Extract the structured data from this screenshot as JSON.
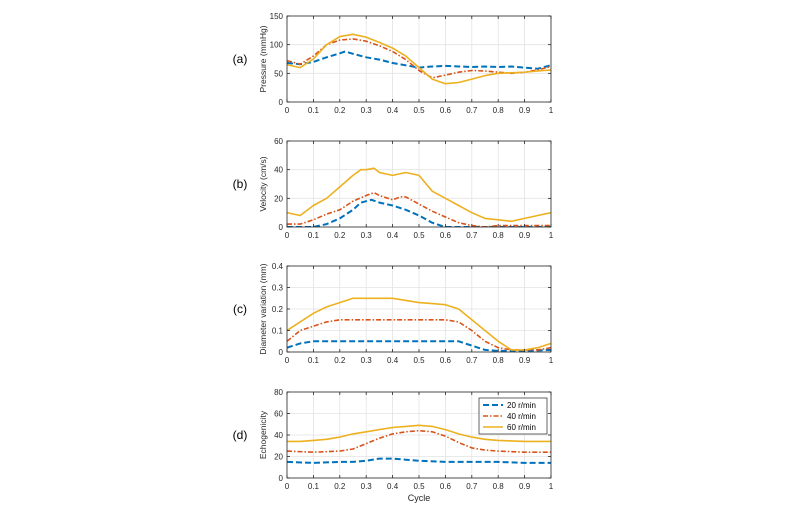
{
  "colors": {
    "series1": "#0072BD",
    "series2": "#D95319",
    "series3": "#EDB120",
    "grid": "#e3e3e3",
    "axis": "#262626"
  },
  "legend": [
    "20 r/min",
    "40 r/min",
    "60 r/min"
  ],
  "xlabel": "Cycle",
  "chart_data": [
    {
      "type": "line",
      "panel_label": "(a)",
      "title": "",
      "xlabel": "",
      "ylabel": "Pressure (mmHg)",
      "xlim": [
        0,
        1
      ],
      "ylim": [
        0,
        150
      ],
      "grid": true,
      "xticks": [
        0,
        0.1,
        0.2,
        0.3,
        0.4,
        0.5,
        0.6,
        0.7,
        0.8,
        0.9,
        1
      ],
      "yticks": [
        0,
        50,
        100,
        150
      ],
      "series": [
        {
          "name": "20 r/min",
          "style": "dashed",
          "x": [
            0,
            0.05,
            0.1,
            0.15,
            0.2,
            0.22,
            0.25,
            0.3,
            0.35,
            0.4,
            0.45,
            0.5,
            0.55,
            0.6,
            0.65,
            0.7,
            0.75,
            0.8,
            0.85,
            0.9,
            0.95,
            1
          ],
          "y": [
            68,
            66,
            70,
            78,
            85,
            88,
            84,
            78,
            74,
            68,
            64,
            60,
            62,
            63,
            62,
            61,
            62,
            61,
            62,
            60,
            58,
            64
          ]
        },
        {
          "name": "40 r/min",
          "style": "dashdot",
          "x": [
            0,
            0.05,
            0.1,
            0.15,
            0.2,
            0.25,
            0.3,
            0.35,
            0.4,
            0.45,
            0.5,
            0.55,
            0.6,
            0.65,
            0.7,
            0.75,
            0.8,
            0.85,
            0.9,
            0.95,
            1
          ],
          "y": [
            72,
            66,
            80,
            100,
            108,
            110,
            106,
            98,
            88,
            74,
            55,
            42,
            47,
            52,
            55,
            54,
            52,
            50,
            52,
            56,
            62
          ]
        },
        {
          "name": "60 r/min",
          "style": "solid",
          "x": [
            0,
            0.05,
            0.1,
            0.15,
            0.2,
            0.25,
            0.3,
            0.35,
            0.4,
            0.45,
            0.5,
            0.55,
            0.6,
            0.65,
            0.7,
            0.75,
            0.8,
            0.85,
            0.9,
            0.95,
            1
          ],
          "y": [
            65,
            60,
            75,
            100,
            114,
            118,
            113,
            104,
            94,
            80,
            60,
            40,
            32,
            34,
            40,
            46,
            50,
            51,
            52,
            54,
            56
          ]
        }
      ]
    },
    {
      "type": "line",
      "panel_label": "(b)",
      "title": "",
      "xlabel": "",
      "ylabel": "Velocity (cm/s)",
      "xlim": [
        0,
        1
      ],
      "ylim": [
        0,
        60
      ],
      "grid": true,
      "xticks": [
        0,
        0.1,
        0.2,
        0.3,
        0.4,
        0.5,
        0.6,
        0.7,
        0.8,
        0.9,
        1
      ],
      "yticks": [
        0,
        20,
        40,
        60
      ],
      "series": [
        {
          "name": "20 r/min",
          "style": "dashed",
          "x": [
            0,
            0.1,
            0.15,
            0.2,
            0.25,
            0.28,
            0.3,
            0.32,
            0.35,
            0.4,
            0.45,
            0.5,
            0.55,
            0.6,
            0.65,
            0.7,
            0.8,
            0.9,
            1
          ],
          "y": [
            0,
            0,
            2,
            6,
            12,
            17,
            18,
            19,
            17,
            15,
            12,
            8,
            3,
            0,
            0,
            0,
            0,
            0,
            0
          ]
        },
        {
          "name": "40 r/min",
          "style": "dashdot",
          "x": [
            0,
            0.05,
            0.1,
            0.15,
            0.2,
            0.25,
            0.3,
            0.33,
            0.35,
            0.4,
            0.43,
            0.45,
            0.5,
            0.55,
            0.6,
            0.65,
            0.7,
            0.75,
            0.8,
            0.85,
            0.9,
            0.95,
            1
          ],
          "y": [
            2,
            2,
            5,
            9,
            12,
            18,
            22,
            24,
            22,
            19,
            21,
            21,
            16,
            11,
            7,
            3,
            1,
            0,
            1,
            1,
            1,
            1,
            1
          ]
        },
        {
          "name": "60 r/min",
          "style": "solid",
          "x": [
            0,
            0.05,
            0.1,
            0.15,
            0.2,
            0.25,
            0.28,
            0.3,
            0.33,
            0.35,
            0.4,
            0.45,
            0.5,
            0.55,
            0.6,
            0.65,
            0.7,
            0.75,
            0.8,
            0.85,
            0.9,
            0.95,
            1
          ],
          "y": [
            10,
            8,
            15,
            20,
            28,
            36,
            40,
            40,
            41,
            38,
            36,
            38,
            36,
            25,
            20,
            15,
            10,
            6,
            5,
            4,
            6,
            8,
            10
          ]
        }
      ]
    },
    {
      "type": "line",
      "panel_label": "(c)",
      "title": "",
      "xlabel": "",
      "ylabel": "Diameter variation (mm)",
      "xlim": [
        0,
        1
      ],
      "ylim": [
        0,
        0.4
      ],
      "grid": true,
      "xticks": [
        0,
        0.1,
        0.2,
        0.3,
        0.4,
        0.5,
        0.6,
        0.7,
        0.8,
        0.9,
        1
      ],
      "yticks": [
        0,
        0.1,
        0.2,
        0.3,
        0.4
      ],
      "series": [
        {
          "name": "20 r/min",
          "style": "dashed",
          "x": [
            0,
            0.05,
            0.1,
            0.2,
            0.3,
            0.4,
            0.5,
            0.6,
            0.65,
            0.7,
            0.75,
            0.8,
            0.9,
            1
          ],
          "y": [
            0.02,
            0.04,
            0.05,
            0.05,
            0.05,
            0.05,
            0.05,
            0.05,
            0.05,
            0.03,
            0.01,
            0.005,
            0.005,
            0.01
          ]
        },
        {
          "name": "40 r/min",
          "style": "dashdot",
          "x": [
            0,
            0.05,
            0.1,
            0.15,
            0.2,
            0.3,
            0.4,
            0.5,
            0.55,
            0.6,
            0.65,
            0.7,
            0.75,
            0.8,
            0.85,
            0.9,
            0.95,
            1
          ],
          "y": [
            0.05,
            0.1,
            0.12,
            0.14,
            0.15,
            0.15,
            0.15,
            0.15,
            0.15,
            0.15,
            0.14,
            0.1,
            0.05,
            0.02,
            0.01,
            0.01,
            0.01,
            0.02
          ]
        },
        {
          "name": "60 r/min",
          "style": "solid",
          "x": [
            0,
            0.05,
            0.1,
            0.15,
            0.2,
            0.25,
            0.3,
            0.4,
            0.45,
            0.5,
            0.55,
            0.6,
            0.65,
            0.7,
            0.75,
            0.8,
            0.85,
            0.9,
            0.95,
            1
          ],
          "y": [
            0.1,
            0.14,
            0.18,
            0.21,
            0.23,
            0.25,
            0.25,
            0.25,
            0.24,
            0.23,
            0.225,
            0.22,
            0.2,
            0.15,
            0.1,
            0.05,
            0.01,
            0.01,
            0.02,
            0.04
          ]
        }
      ]
    },
    {
      "type": "line",
      "panel_label": "(d)",
      "title": "",
      "xlabel": "Cycle",
      "ylabel": "Echogenicity",
      "xlim": [
        0,
        1
      ],
      "ylim": [
        0,
        80
      ],
      "grid": true,
      "legend_position": "top-right",
      "xticks": [
        0,
        0.1,
        0.2,
        0.3,
        0.4,
        0.5,
        0.6,
        0.7,
        0.8,
        0.9,
        1
      ],
      "yticks": [
        0,
        20,
        40,
        60,
        80
      ],
      "series": [
        {
          "name": "20 r/min",
          "style": "dashed",
          "x": [
            0,
            0.1,
            0.2,
            0.25,
            0.3,
            0.35,
            0.4,
            0.45,
            0.5,
            0.6,
            0.7,
            0.8,
            0.9,
            1
          ],
          "y": [
            15,
            14,
            15,
            15,
            16,
            18,
            18,
            17,
            16,
            15,
            15,
            15,
            14,
            14
          ]
        },
        {
          "name": "40 r/min",
          "style": "dashdot",
          "x": [
            0,
            0.1,
            0.2,
            0.25,
            0.3,
            0.35,
            0.4,
            0.45,
            0.5,
            0.55,
            0.6,
            0.65,
            0.7,
            0.75,
            0.8,
            0.9,
            1
          ],
          "y": [
            25,
            24,
            25,
            27,
            32,
            37,
            41,
            43,
            44,
            43,
            39,
            33,
            28,
            26,
            25,
            24,
            24
          ]
        },
        {
          "name": "60 r/min",
          "style": "solid",
          "x": [
            0,
            0.05,
            0.1,
            0.15,
            0.2,
            0.25,
            0.3,
            0.35,
            0.4,
            0.45,
            0.5,
            0.55,
            0.6,
            0.65,
            0.7,
            0.75,
            0.8,
            0.9,
            1
          ],
          "y": [
            34,
            34,
            35,
            36,
            38,
            41,
            43,
            45,
            47,
            48,
            49,
            48,
            45,
            41,
            38,
            36,
            35,
            34,
            34
          ]
        }
      ]
    }
  ]
}
